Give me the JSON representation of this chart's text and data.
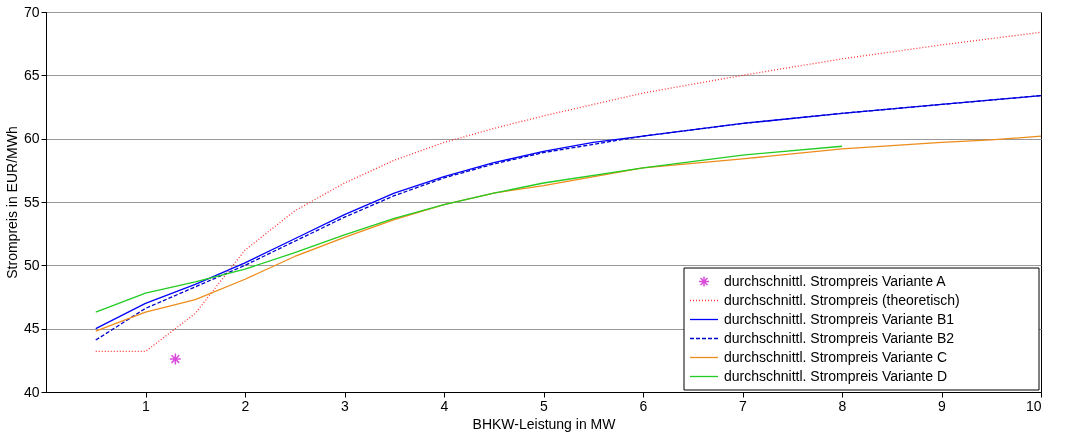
{
  "chart_data": {
    "type": "line",
    "xlabel": "BHKW-Leistung in MW",
    "ylabel": "Strompreis in EUR/MWh",
    "xlim": [
      0,
      10
    ],
    "xticks": [
      1,
      2,
      3,
      4,
      5,
      6,
      7,
      8,
      9,
      10
    ],
    "ylim": [
      40,
      70
    ],
    "yticks": [
      40,
      45,
      50,
      55,
      60,
      65,
      70
    ],
    "grid": "y",
    "legend": "bottom right",
    "series": [
      {
        "name": "durchschnittl. Strompreis Variante A",
        "type": "scatter",
        "marker": "cross",
        "color": "#cc00cc",
        "x": [
          1.3
        ],
        "values": [
          42.6
        ]
      },
      {
        "name": "durchschnittl. Strompreis (theoretisch)",
        "color": "#ff3333",
        "line_style": "dotted",
        "x": [
          0.5,
          1,
          1.5,
          2,
          2.5,
          3,
          3.5,
          4,
          4.5,
          5,
          6,
          7,
          8,
          9,
          10
        ],
        "values": [
          43.2,
          43.2,
          46.2,
          51.2,
          54.3,
          56.5,
          58.3,
          59.7,
          60.8,
          61.8,
          63.6,
          65.0,
          66.3,
          67.4,
          68.4
        ]
      },
      {
        "name": "durchschnittl. Strompreis Variante B1",
        "color": "#0000ff",
        "line_style": "solid",
        "x": [
          0.5,
          1,
          1.5,
          2,
          2.5,
          3,
          3.5,
          4,
          4.5,
          5,
          5.5,
          6,
          7,
          8,
          9,
          10
        ],
        "values": [
          45.0,
          47.0,
          48.5,
          50.2,
          52.1,
          54.0,
          55.7,
          57.0,
          58.1,
          59.0,
          59.7,
          60.2,
          61.2,
          62.0,
          62.7,
          63.4
        ]
      },
      {
        "name": "durchschnittl. Strompreis Variante B2",
        "color": "#0000cc",
        "line_style": "dashed",
        "x": [
          0.5,
          1,
          1.5,
          2,
          2.5,
          3,
          3.5,
          4,
          4.5,
          5,
          6,
          7,
          8,
          9,
          10
        ],
        "values": [
          44.1,
          46.6,
          48.3,
          50.0,
          51.9,
          53.8,
          55.5,
          56.9,
          58.0,
          58.9,
          60.2,
          61.2,
          62.0,
          62.7,
          63.4
        ]
      },
      {
        "name": "durchschnittl. Strompreis Variante C",
        "color": "#ee8c1a",
        "line_style": "solid",
        "x": [
          0.5,
          1,
          1.5,
          2,
          2.5,
          3,
          3.5,
          4,
          4.5,
          5,
          6,
          7,
          8,
          9,
          9.5,
          10
        ],
        "values": [
          44.8,
          46.3,
          47.3,
          48.9,
          50.7,
          52.2,
          53.6,
          54.8,
          55.7,
          56.3,
          57.7,
          58.4,
          59.2,
          59.7,
          59.9,
          60.2
        ]
      },
      {
        "name": "durchschnittl. Strompreis Variante D",
        "color": "#22cc22",
        "line_style": "solid",
        "x": [
          0.5,
          1,
          1.5,
          2,
          2.5,
          3,
          3.5,
          4,
          4.5,
          5,
          6,
          7,
          8
        ],
        "values": [
          46.3,
          47.8,
          48.7,
          49.7,
          51.0,
          52.4,
          53.7,
          54.8,
          55.7,
          56.5,
          57.7,
          58.7,
          59.4
        ]
      }
    ]
  }
}
